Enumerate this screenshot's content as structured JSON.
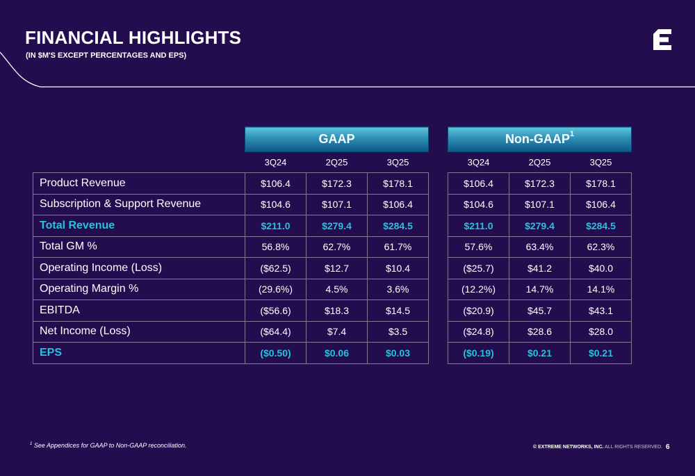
{
  "header": {
    "title": "FINANCIAL HIGHLIGHTS",
    "subtitle": "(IN $M'S EXCEPT PERCENTAGES AND EPS)"
  },
  "gaap": {
    "title": "GAAP",
    "columns": [
      "3Q24",
      "2Q25",
      "3Q25"
    ]
  },
  "non_gaap": {
    "title": "Non-GAAP",
    "superscript": "1",
    "columns": [
      "3Q24",
      "2Q25",
      "3Q25"
    ]
  },
  "rows": [
    {
      "label": "Product Revenue",
      "highlight": false,
      "gaap": [
        "$106.4",
        "$172.3",
        "$178.1"
      ],
      "non_gaap": [
        "$106.4",
        "$172.3",
        "$178.1"
      ]
    },
    {
      "label": "Subscription & Support Revenue",
      "highlight": false,
      "gaap": [
        "$104.6",
        "$107.1",
        "$106.4"
      ],
      "non_gaap": [
        "$104.6",
        "$107.1",
        "$106.4"
      ]
    },
    {
      "label": "Total Revenue",
      "highlight": true,
      "gaap": [
        "$211.0",
        "$279.4",
        "$284.5"
      ],
      "non_gaap": [
        "$211.0",
        "$279.4",
        "$284.5"
      ]
    },
    {
      "label": "Total GM %",
      "highlight": false,
      "gaap": [
        "56.8%",
        "62.7%",
        "61.7%"
      ],
      "non_gaap": [
        "57.6%",
        "63.4%",
        "62.3%"
      ]
    },
    {
      "label": "Operating Income (Loss)",
      "highlight": false,
      "gaap": [
        "($62.5)",
        "$12.7",
        "$10.4"
      ],
      "non_gaap": [
        "($25.7)",
        "$41.2",
        "$40.0"
      ]
    },
    {
      "label": "Operating Margin %",
      "highlight": false,
      "gaap": [
        "(29.6%)",
        "4.5%",
        "3.6%"
      ],
      "non_gaap": [
        "(12.2%)",
        "14.7%",
        "14.1%"
      ]
    },
    {
      "label": "EBITDA",
      "highlight": false,
      "gaap": [
        "($56.6)",
        "$18.3",
        "$14.5"
      ],
      "non_gaap": [
        "($20.9)",
        "$45.7",
        "$43.1"
      ]
    },
    {
      "label": "Net Income (Loss)",
      "highlight": false,
      "gaap": [
        "($64.4)",
        "$7.4",
        "$3.5"
      ],
      "non_gaap": [
        "($24.8)",
        "$28.6",
        "$28.0"
      ]
    },
    {
      "label": "EPS",
      "highlight": true,
      "gaap": [
        "($0.50)",
        "$0.06",
        "$0.03"
      ],
      "non_gaap": [
        "($0.19)",
        "$0.21",
        "$0.21"
      ]
    }
  ],
  "footer": {
    "footnote_marker": "1",
    "footnote_text": "See Appendices for GAAP to Non-GAAP reconciliation.",
    "copyright_bold": "© EXTREME NETWORKS, INC.",
    "copyright_rest": " ALL RIGHTS RESERVED.",
    "page_number": "6"
  },
  "colors": {
    "background": "#240d4f",
    "highlight_text": "#27c2dd",
    "header_gradient_top": "#5ec5dc",
    "header_gradient_bottom": "#0e5688"
  },
  "icons": {
    "logo": "extreme-networks-e-logo"
  }
}
